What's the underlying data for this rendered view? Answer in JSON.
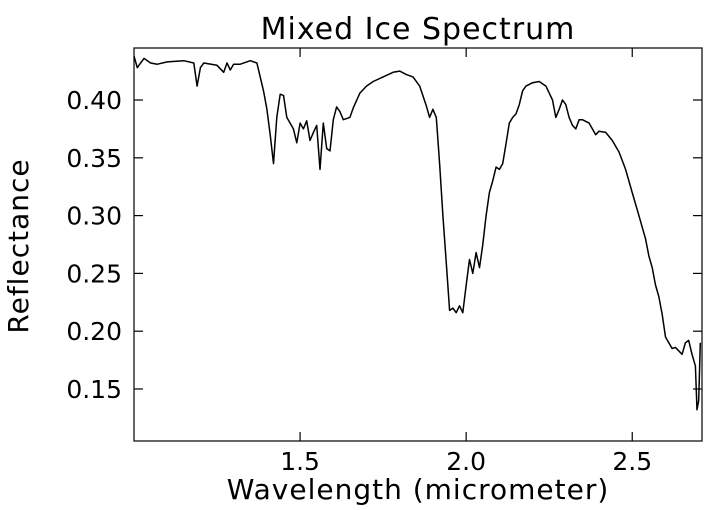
{
  "chart_data": {
    "type": "line",
    "title": "Mixed Ice Spectrum",
    "xlabel": "Wavelength (micrometer)",
    "ylabel": "Reflectance",
    "xlim": [
      1.0,
      2.71
    ],
    "ylim": [
      0.105,
      0.445
    ],
    "x_ticks": [
      1.5,
      2.0,
      2.5
    ],
    "x_tick_labels": [
      "1.5",
      "2.0",
      "2.5"
    ],
    "y_ticks": [
      0.15,
      0.2,
      0.25,
      0.3,
      0.35,
      0.4
    ],
    "y_tick_labels": [
      "0.15",
      "0.20",
      "0.25",
      "0.30",
      "0.35",
      "0.40"
    ],
    "grid": false,
    "legend": "none",
    "line_color": "#000000",
    "series": [
      {
        "x": [
          1.0,
          1.01,
          1.02,
          1.03,
          1.05,
          1.07,
          1.1,
          1.15,
          1.18,
          1.19,
          1.2,
          1.21,
          1.25,
          1.27,
          1.28,
          1.29,
          1.3,
          1.32,
          1.35,
          1.37,
          1.38,
          1.39,
          1.4,
          1.41,
          1.42,
          1.43,
          1.44,
          1.45,
          1.46,
          1.47,
          1.48,
          1.49,
          1.5,
          1.51,
          1.52,
          1.53,
          1.54,
          1.55,
          1.56,
          1.57,
          1.58,
          1.59,
          1.6,
          1.61,
          1.62,
          1.63,
          1.65,
          1.66,
          1.68,
          1.7,
          1.72,
          1.75,
          1.78,
          1.8,
          1.82,
          1.84,
          1.86,
          1.88,
          1.89,
          1.9,
          1.91,
          1.92,
          1.93,
          1.94,
          1.95,
          1.96,
          1.97,
          1.98,
          1.99,
          2.0,
          2.01,
          2.02,
          2.03,
          2.04,
          2.05,
          2.06,
          2.07,
          2.08,
          2.09,
          2.1,
          2.11,
          2.12,
          2.13,
          2.14,
          2.15,
          2.16,
          2.17,
          2.18,
          2.2,
          2.22,
          2.24,
          2.26,
          2.27,
          2.28,
          2.29,
          2.3,
          2.31,
          2.32,
          2.33,
          2.34,
          2.35,
          2.37,
          2.39,
          2.4,
          2.42,
          2.44,
          2.46,
          2.48,
          2.5,
          2.52,
          2.54,
          2.55,
          2.56,
          2.57,
          2.58,
          2.59,
          2.6,
          2.61,
          2.62,
          2.63,
          2.64,
          2.65,
          2.66,
          2.67,
          2.68,
          2.69,
          2.695,
          2.7,
          2.705
        ],
        "y": [
          0.438,
          0.428,
          0.432,
          0.436,
          0.432,
          0.431,
          0.433,
          0.434,
          0.432,
          0.412,
          0.428,
          0.432,
          0.43,
          0.424,
          0.432,
          0.426,
          0.431,
          0.431,
          0.434,
          0.432,
          0.42,
          0.408,
          0.392,
          0.37,
          0.345,
          0.385,
          0.405,
          0.404,
          0.385,
          0.38,
          0.375,
          0.363,
          0.38,
          0.375,
          0.382,
          0.365,
          0.372,
          0.378,
          0.34,
          0.38,
          0.358,
          0.356,
          0.383,
          0.394,
          0.39,
          0.383,
          0.385,
          0.393,
          0.406,
          0.412,
          0.416,
          0.42,
          0.424,
          0.425,
          0.422,
          0.42,
          0.412,
          0.395,
          0.385,
          0.392,
          0.385,
          0.345,
          0.3,
          0.26,
          0.218,
          0.22,
          0.216,
          0.222,
          0.216,
          0.24,
          0.262,
          0.25,
          0.268,
          0.255,
          0.275,
          0.3,
          0.32,
          0.33,
          0.342,
          0.34,
          0.345,
          0.362,
          0.38,
          0.385,
          0.388,
          0.396,
          0.408,
          0.412,
          0.415,
          0.416,
          0.412,
          0.4,
          0.385,
          0.392,
          0.4,
          0.396,
          0.385,
          0.378,
          0.375,
          0.383,
          0.383,
          0.38,
          0.37,
          0.373,
          0.372,
          0.365,
          0.355,
          0.34,
          0.32,
          0.3,
          0.28,
          0.265,
          0.255,
          0.24,
          0.23,
          0.215,
          0.195,
          0.19,
          0.185,
          0.186,
          0.183,
          0.18,
          0.19,
          0.192,
          0.18,
          0.17,
          0.132,
          0.14,
          0.19
        ]
      }
    ]
  }
}
